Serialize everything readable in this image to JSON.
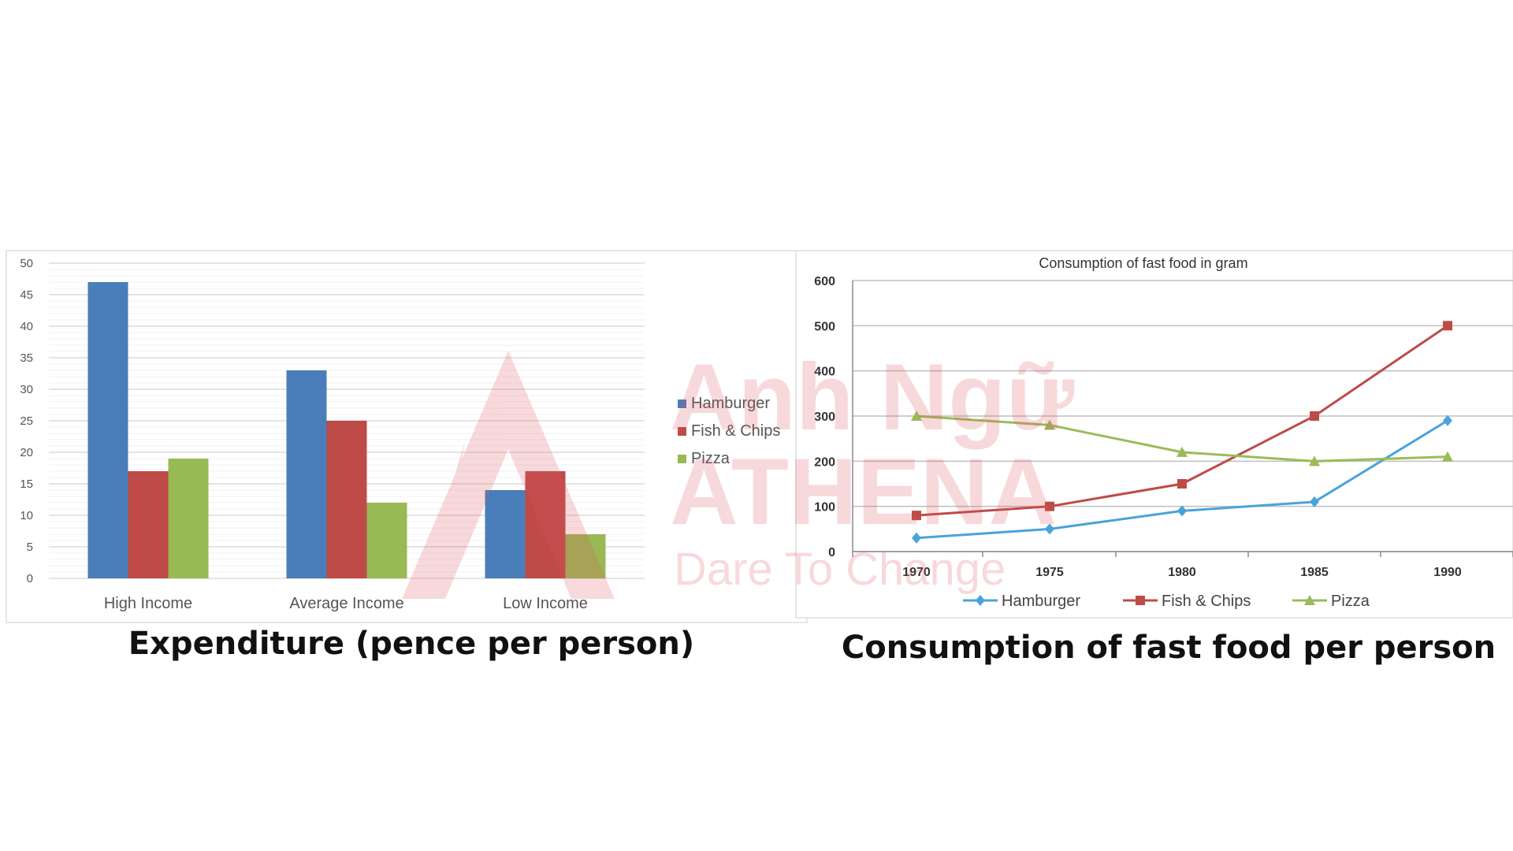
{
  "watermark": {
    "line1": "Anh Ngữ",
    "line2": "ATHENA",
    "line3": "Dare To Change",
    "color": "#e9a4a8"
  },
  "left_caption": "Expenditure (pence per person)",
  "right_caption": "Consumption of fast food per person",
  "colors": {
    "Hamburger": "#4a7ebb",
    "Fish & Chips": "#be4b48",
    "Pizza": "#98b954",
    "line_Hamburger": "#4aa3d8",
    "line_Fish & Chips": "#be4b48",
    "line_Pizza": "#9bbb59"
  },
  "chart_data": [
    {
      "type": "bar",
      "title": "",
      "categories": [
        "High Income",
        "Average Income",
        "Low Income"
      ],
      "series": [
        {
          "name": "Hamburger",
          "values": [
            47,
            33,
            14
          ]
        },
        {
          "name": "Fish & Chips",
          "values": [
            17,
            25,
            17
          ]
        },
        {
          "name": "Pizza",
          "values": [
            19,
            12,
            7
          ]
        }
      ],
      "ylim": [
        0,
        50
      ],
      "yticks": [
        0,
        5,
        10,
        15,
        20,
        25,
        30,
        35,
        40,
        45,
        50
      ],
      "grid": true,
      "legend": "right"
    },
    {
      "type": "line",
      "title": "Consumption of fast food in gram",
      "x": [
        "1970",
        "1975",
        "1980",
        "1985",
        "1990"
      ],
      "series": [
        {
          "name": "Hamburger",
          "values": [
            30,
            50,
            90,
            110,
            290
          ],
          "marker": "diamond"
        },
        {
          "name": "Fish & Chips",
          "values": [
            80,
            100,
            150,
            300,
            500
          ],
          "marker": "square"
        },
        {
          "name": "Pizza",
          "values": [
            300,
            280,
            220,
            200,
            210
          ],
          "marker": "triangle"
        }
      ],
      "ylim": [
        0,
        600
      ],
      "yticks": [
        0,
        100,
        200,
        300,
        400,
        500,
        600
      ],
      "grid": true,
      "legend": "bottom"
    }
  ]
}
